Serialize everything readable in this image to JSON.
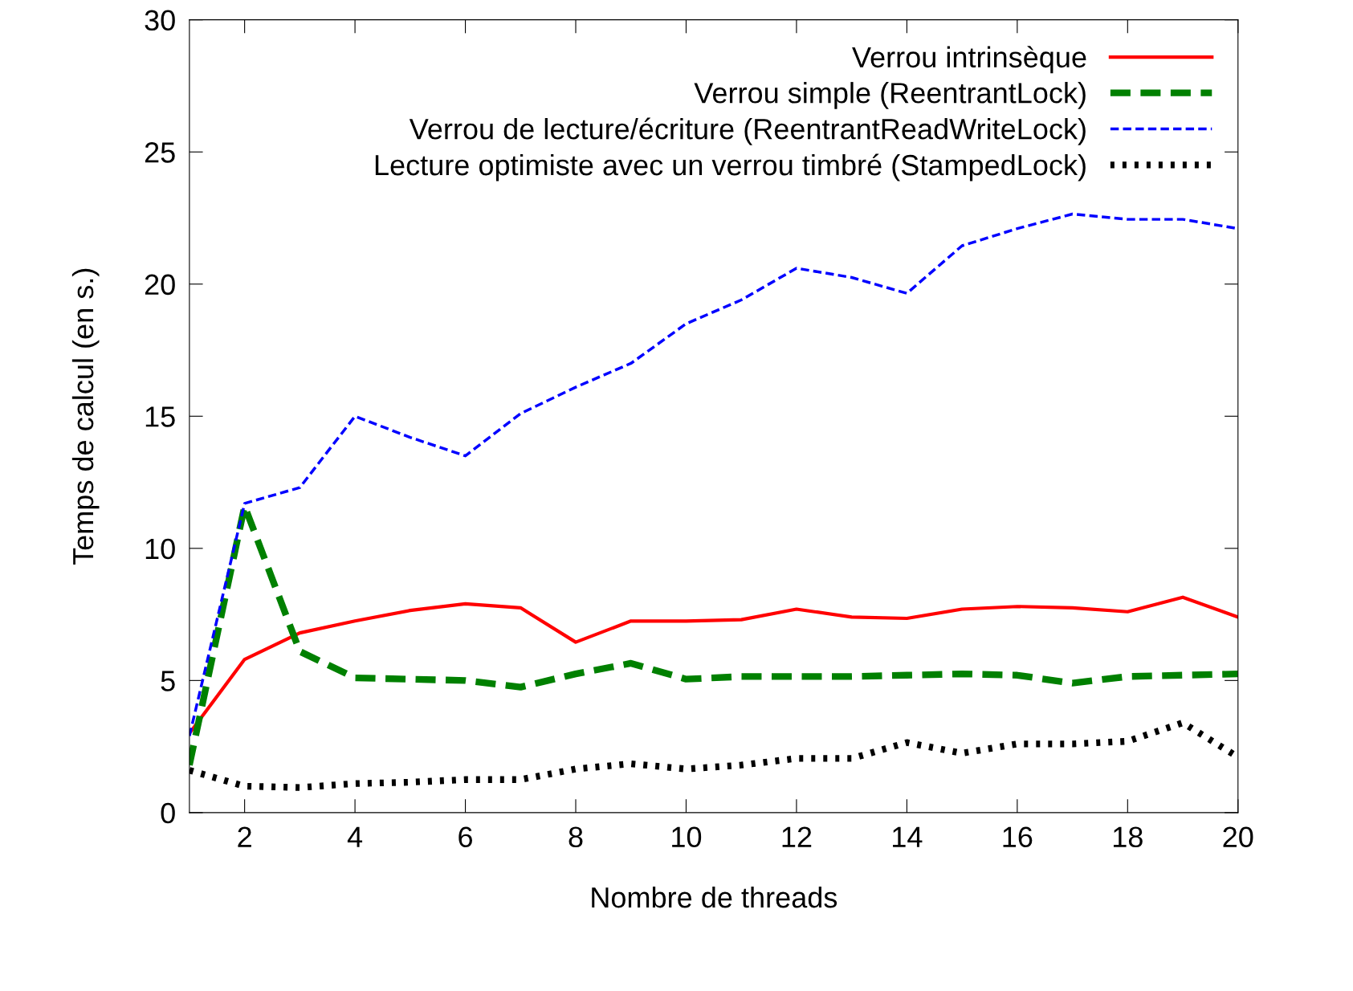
{
  "chart_data": {
    "type": "line",
    "xlabel": "Nombre de threads",
    "ylabel": "Temps de calcul (en s.)",
    "x": [
      1,
      2,
      3,
      4,
      5,
      6,
      7,
      8,
      9,
      10,
      11,
      12,
      13,
      14,
      15,
      16,
      17,
      18,
      19,
      20
    ],
    "series": [
      {
        "name": "Verrou intrinsèque",
        "color": "#ff0000",
        "line_style": "solid",
        "values": [
          3.0,
          5.8,
          6.8,
          7.25,
          7.65,
          7.9,
          7.75,
          6.45,
          7.25,
          7.25,
          7.3,
          7.7,
          7.4,
          7.35,
          7.7,
          7.8,
          7.75,
          7.6,
          8.15,
          7.4
        ]
      },
      {
        "name": "Verrou simple (ReentrantLock)",
        "color": "#008000",
        "line_style": "dashed",
        "values": [
          1.8,
          11.6,
          6.1,
          5.1,
          5.05,
          5.0,
          4.75,
          5.25,
          5.65,
          5.05,
          5.15,
          5.15,
          5.15,
          5.2,
          5.25,
          5.2,
          4.9,
          5.15,
          5.2,
          5.25
        ]
      },
      {
        "name": "Verrou de lecture/écriture (ReentrantReadWriteLock)",
        "color": "#0000ff",
        "line_style": "dashed",
        "values": [
          2.9,
          11.7,
          12.3,
          15.0,
          14.2,
          13.5,
          15.1,
          16.1,
          17.0,
          18.5,
          19.4,
          20.6,
          20.25,
          19.65,
          21.45,
          22.1,
          22.65,
          22.45,
          22.45,
          22.1
        ]
      },
      {
        "name": "Lecture optimiste avec un verrou timbré (StampedLock)",
        "color": "#000000",
        "line_style": "dotted",
        "values": [
          1.6,
          1.0,
          0.95,
          1.1,
          1.15,
          1.25,
          1.25,
          1.65,
          1.85,
          1.65,
          1.8,
          2.05,
          2.05,
          2.65,
          2.25,
          2.6,
          2.6,
          2.7,
          3.4,
          2.1
        ]
      }
    ],
    "xlim": [
      1,
      20
    ],
    "xticks": [
      2,
      4,
      6,
      8,
      10,
      12,
      14,
      16,
      18,
      20
    ],
    "ylim": [
      0,
      30
    ],
    "yticks": [
      0,
      5,
      10,
      15,
      20,
      25,
      30
    ],
    "grid": false,
    "legend": "top right",
    "marker": "none"
  }
}
